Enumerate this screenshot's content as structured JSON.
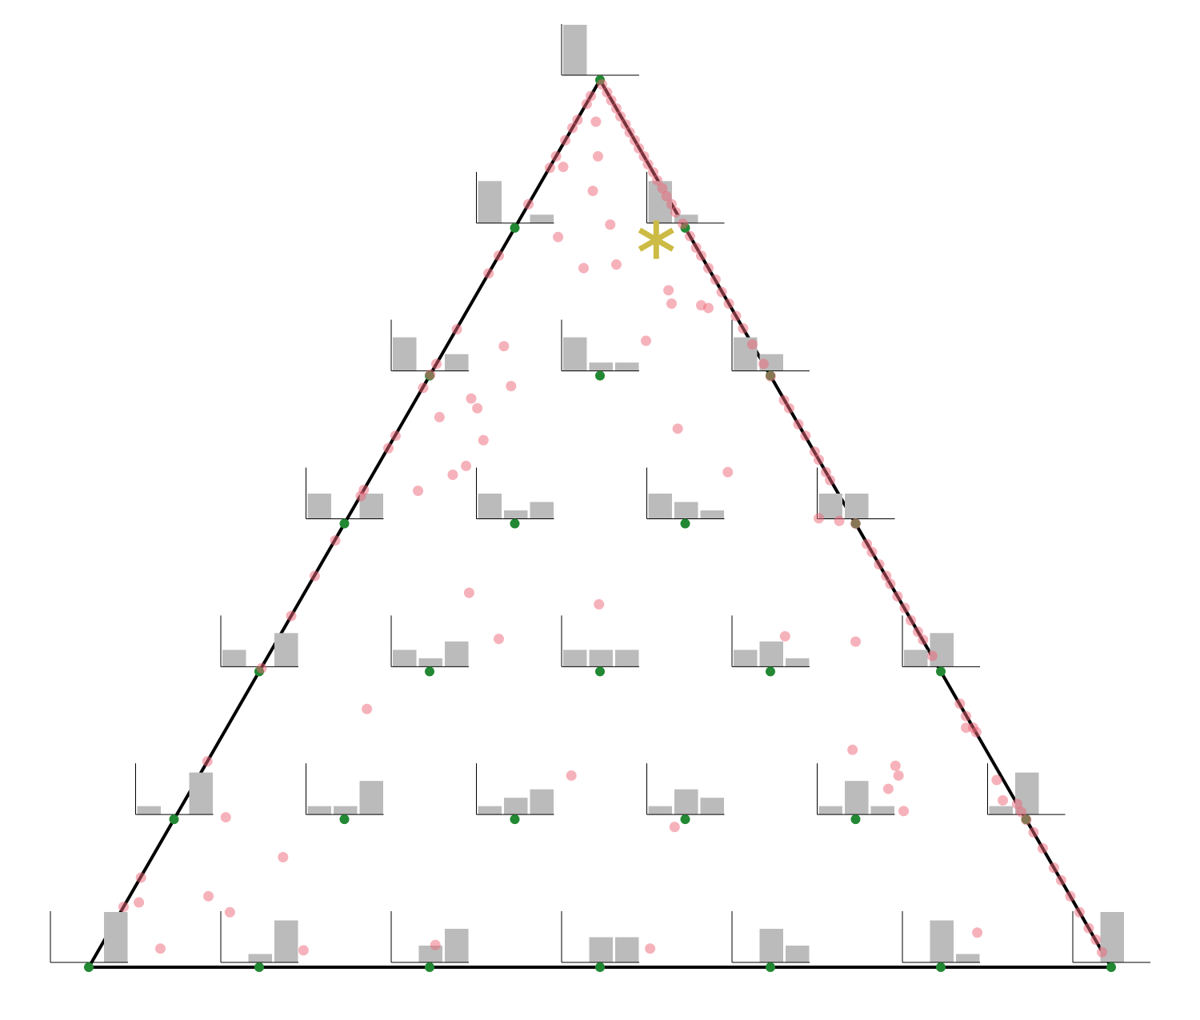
{
  "chart_data": {
    "type": "ternary",
    "xlim": [
      0,
      1
    ],
    "ylim": [
      0,
      1
    ],
    "hist_ylim": [
      0,
      6
    ],
    "hist_color": "#bbbbbb",
    "node_color": "#228833",
    "histograms": [
      {
        "values": [
          6,
          0,
          0
        ]
      },
      {
        "values": [
          5,
          0,
          1
        ]
      },
      {
        "values": [
          5,
          1,
          0
        ]
      },
      {
        "values": [
          4,
          0,
          2
        ]
      },
      {
        "values": [
          4,
          1,
          1
        ]
      },
      {
        "values": [
          4,
          2,
          0
        ]
      },
      {
        "values": [
          3,
          0,
          3
        ]
      },
      {
        "values": [
          3,
          1,
          2
        ]
      },
      {
        "values": [
          3,
          2,
          1
        ]
      },
      {
        "values": [
          3,
          3,
          0
        ]
      },
      {
        "values": [
          2,
          0,
          4
        ]
      },
      {
        "values": [
          2,
          1,
          3
        ]
      },
      {
        "values": [
          2,
          2,
          2
        ]
      },
      {
        "values": [
          2,
          3,
          1
        ]
      },
      {
        "values": [
          2,
          4,
          0
        ]
      },
      {
        "values": [
          1,
          0,
          5
        ]
      },
      {
        "values": [
          1,
          1,
          4
        ]
      },
      {
        "values": [
          1,
          2,
          3
        ]
      },
      {
        "values": [
          1,
          3,
          2
        ]
      },
      {
        "values": [
          1,
          4,
          1
        ]
      },
      {
        "values": [
          1,
          5,
          0
        ]
      },
      {
        "values": [
          0,
          0,
          6
        ]
      },
      {
        "values": [
          0,
          1,
          5
        ]
      },
      {
        "values": [
          0,
          2,
          4
        ]
      },
      {
        "values": [
          0,
          3,
          3
        ]
      },
      {
        "values": [
          0,
          4,
          2
        ]
      },
      {
        "values": [
          0,
          5,
          1
        ]
      },
      {
        "values": [
          0,
          6,
          0
        ]
      }
    ],
    "series": [
      {
        "color": "#ee6677",
        "x": [
          0.502,
          0.507,
          0.511,
          0.516,
          0.52,
          0.525,
          0.529,
          0.534,
          0.538,
          0.543,
          0.547,
          0.552,
          0.556,
          0.561,
          0.565,
          0.57,
          0.574,
          0.581,
          0.588,
          0.594,
          0.599,
          0.606,
          0.613,
          0.619,
          0.626,
          0.633,
          0.64,
          0.649,
          0.66,
          0.667,
          0.68,
          0.685,
          0.694,
          0.701,
          0.71,
          0.714,
          0.721,
          0.725,
          0.75,
          0.761,
          0.766,
          0.773,
          0.78,
          0.784,
          0.791,
          0.798,
          0.804,
          0.811,
          0.816,
          0.825,
          0.852,
          0.858,
          0.865,
          0.908,
          0.912,
          0.917,
          0.924,
          0.933,
          0.944,
          0.951,
          0.96,
          0.969,
          0.978,
          0.985,
          0.991,
          0.491,
          0.487,
          0.478,
          0.473,
          0.466,
          0.457,
          0.451,
          0.43,
          0.401,
          0.391,
          0.36,
          0.34,
          0.334,
          0.327,
          0.3,
          0.293,
          0.269,
          0.266,
          0.241,
          0.221,
          0.198,
          0.169,
          0.116,
          0.051,
          0.034,
          0.496,
          0.498,
          0.464,
          0.493,
          0.51,
          0.459,
          0.484,
          0.516,
          0.567,
          0.57,
          0.599,
          0.606,
          0.545,
          0.406,
          0.413,
          0.374,
          0.38,
          0.343,
          0.386,
          0.576,
          0.369,
          0.356,
          0.322,
          0.625,
          0.372,
          0.499,
          0.401,
          0.681,
          0.75,
          0.272,
          0.747,
          0.472,
          0.789,
          0.792,
          0.782,
          0.797,
          0.573,
          0.134,
          0.19,
          0.117,
          0.138,
          0.049,
          0.07,
          0.21,
          0.339,
          0.549,
          0.869,
          0.714,
          0.734,
          0.888,
          0.894,
          0.858,
          0.868
        ],
        "y": [
          0.995,
          0.986,
          0.977,
          0.968,
          0.959,
          0.95,
          0.941,
          0.932,
          0.923,
          0.914,
          0.905,
          0.896,
          0.887,
          0.878,
          0.869,
          0.86,
          0.851,
          0.838,
          0.824,
          0.811,
          0.802,
          0.788,
          0.775,
          0.761,
          0.748,
          0.734,
          0.72,
          0.702,
          0.68,
          0.666,
          0.639,
          0.63,
          0.612,
          0.599,
          0.581,
          0.572,
          0.558,
          0.549,
          0.5,
          0.477,
          0.468,
          0.454,
          0.441,
          0.432,
          0.418,
          0.405,
          0.391,
          0.378,
          0.369,
          0.351,
          0.297,
          0.283,
          0.27,
          0.184,
          0.175,
          0.166,
          0.152,
          0.134,
          0.112,
          0.098,
          0.08,
          0.062,
          0.044,
          0.031,
          0.017,
          0.982,
          0.973,
          0.955,
          0.946,
          0.932,
          0.914,
          0.901,
          0.86,
          0.802,
          0.782,
          0.719,
          0.68,
          0.668,
          0.653,
          0.599,
          0.585,
          0.538,
          0.531,
          0.481,
          0.441,
          0.396,
          0.337,
          0.232,
          0.101,
          0.068,
          0.953,
          0.914,
          0.902,
          0.875,
          0.837,
          0.823,
          0.788,
          0.792,
          0.763,
          0.748,
          0.746,
          0.743,
          0.706,
          0.7,
          0.655,
          0.641,
          0.63,
          0.62,
          0.594,
          0.607,
          0.565,
          0.555,
          0.537,
          0.558,
          0.422,
          0.409,
          0.37,
          0.373,
          0.367,
          0.291,
          0.245,
          0.216,
          0.227,
          0.216,
          0.201,
          0.176,
          0.158,
          0.169,
          0.124,
          0.08,
          0.062,
          0.073,
          0.021,
          0.019,
          0.025,
          0.021,
          0.039,
          0.506,
          0.503,
          0.211,
          0.188,
          0.27,
          0.265
        ]
      }
    ],
    "star": {
      "x": 0.555,
      "y": 0.82,
      "color": "#ccbb44"
    }
  }
}
